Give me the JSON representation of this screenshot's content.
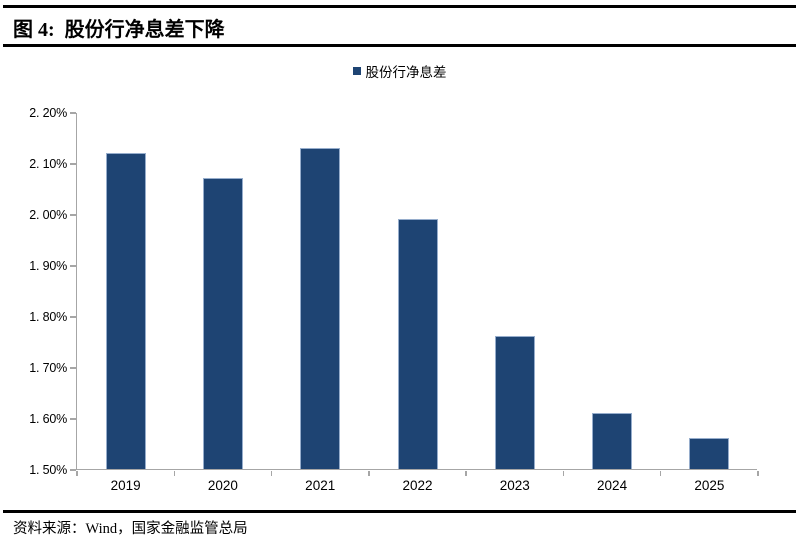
{
  "header": {
    "figure_label": "图 4:",
    "title": "股份行净息差下降"
  },
  "legend": {
    "label": "股份行净息差",
    "swatch_color": "#1E4473"
  },
  "chart_data": {
    "type": "bar",
    "title": "股份行净息差下降",
    "categories": [
      "2019",
      "2020",
      "2021",
      "2022",
      "2023",
      "2024",
      "2025"
    ],
    "series": [
      {
        "name": "股份行净息差",
        "values": [
          2.12,
          2.07,
          2.13,
          1.99,
          1.76,
          1.61,
          1.56
        ]
      }
    ],
    "value_unit": "%",
    "ylim": [
      1.5,
      2.2
    ],
    "y_tick_step": 0.1,
    "y_tick_labels": [
      "1. 50%",
      "1. 60%",
      "1. 70%",
      "1. 80%",
      "1. 90%",
      "2. 00%",
      "2. 10%",
      "2. 20%"
    ],
    "grid": false,
    "legend_position": "top-center",
    "bar_color": "#1E4473",
    "bar_border_color": "#96ADCC",
    "axis_color": "#A6A6A6"
  },
  "footer": {
    "source_label": "资料来源：",
    "source_text": "Wind，国家金融监管总局"
  }
}
